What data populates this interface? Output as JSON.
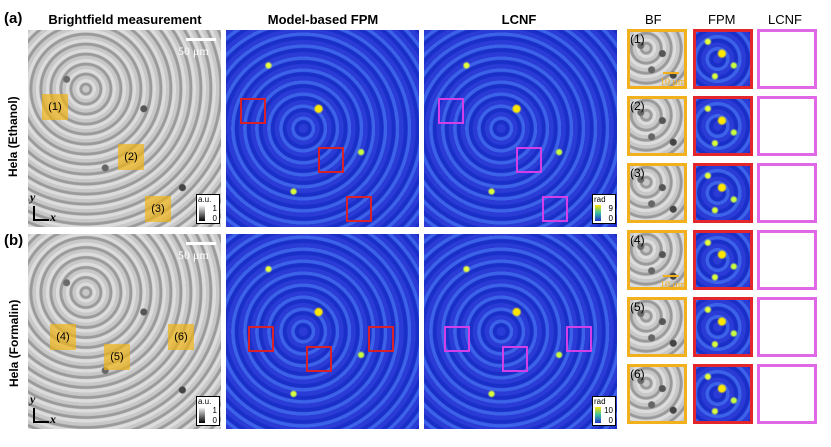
{
  "headers": {
    "panel_a": "(a)",
    "panel_b": "(b)",
    "col1": "Brightfield measurement",
    "col2": "Model-based FPM",
    "col3": "LCNF",
    "right_bf": "BF",
    "right_fpm": "FPM",
    "right_lcnf": "LCNF"
  },
  "rows": {
    "top": "Hela (Ethanol)",
    "bottom": "Hela (Formalin)"
  },
  "scalebars": {
    "top": "50 μm",
    "bottom": "50 μm",
    "crop_top": "10 μm",
    "crop_bottom": "10 μm"
  },
  "roi_labels": [
    "(1)",
    "(2)",
    "(3)",
    "(4)",
    "(5)",
    "(6)"
  ],
  "colorbars": {
    "bf_top_unit": "a.u.",
    "bf_top_max": "1",
    "bf_top_min": "0",
    "bf_bottom_unit": "a.u.",
    "bf_bottom_max": "1",
    "bf_bottom_min": "0",
    "lcnf_top_unit": "rad",
    "lcnf_top_max": "9",
    "lcnf_top_min": "0",
    "lcnf_bottom_unit": "rad",
    "lcnf_bottom_max": "10",
    "lcnf_bottom_min": "0"
  },
  "axes": {
    "y": "y",
    "x": "x"
  },
  "colors": {
    "roi_bf": "#f2b11c",
    "roi_fpm": "#e2262c",
    "roi_lcnf": "#e067e6"
  }
}
